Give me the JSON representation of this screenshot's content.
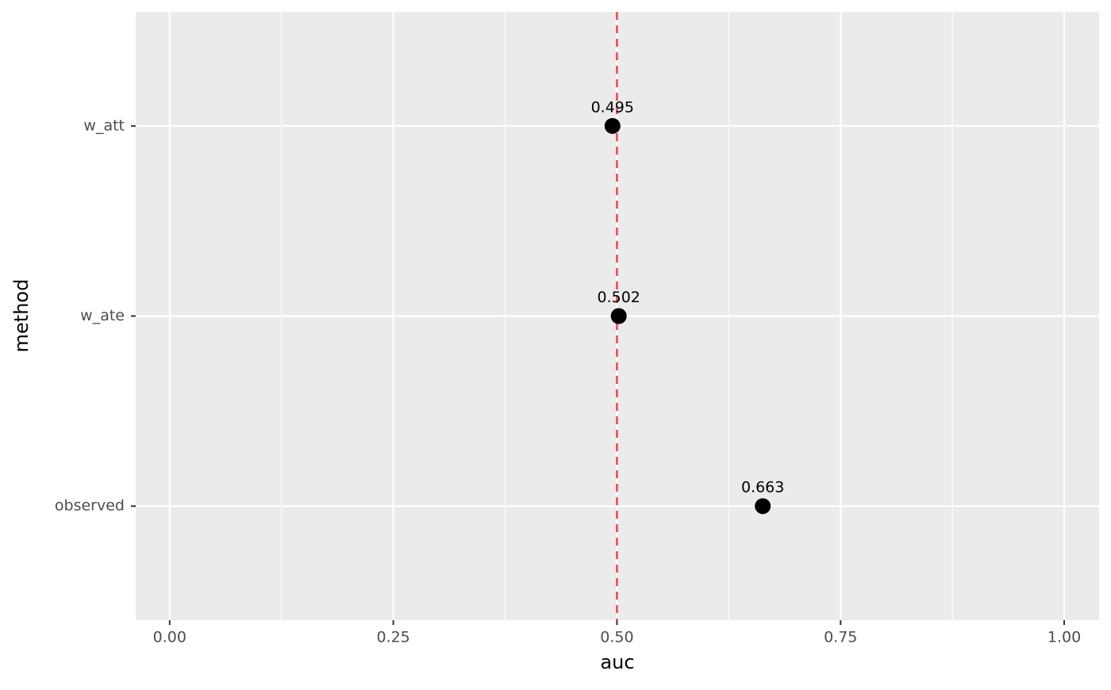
{
  "chart_data": {
    "type": "dot",
    "x_label": "auc",
    "y_label": "method",
    "categories": [
      "observed",
      "w_ate",
      "w_att"
    ],
    "values": [
      0.663,
      0.502,
      0.495
    ],
    "color": "#000000",
    "xlim": [
      -0.038,
      1.039
    ],
    "xticks": [
      {
        "value": 0,
        "label": "0.00"
      },
      0.25,
      {
        "value": 0.5,
        "label": "0.50"
      },
      0.75,
      {
        "value": 1,
        "label": "1.00"
      }
    ],
    "xminor": [
      0.125,
      0.375,
      0.625,
      0.875
    ],
    "reference_line": {
      "value": 0.5,
      "color": "#ef4444",
      "style": "dashed"
    },
    "grid": true
  }
}
